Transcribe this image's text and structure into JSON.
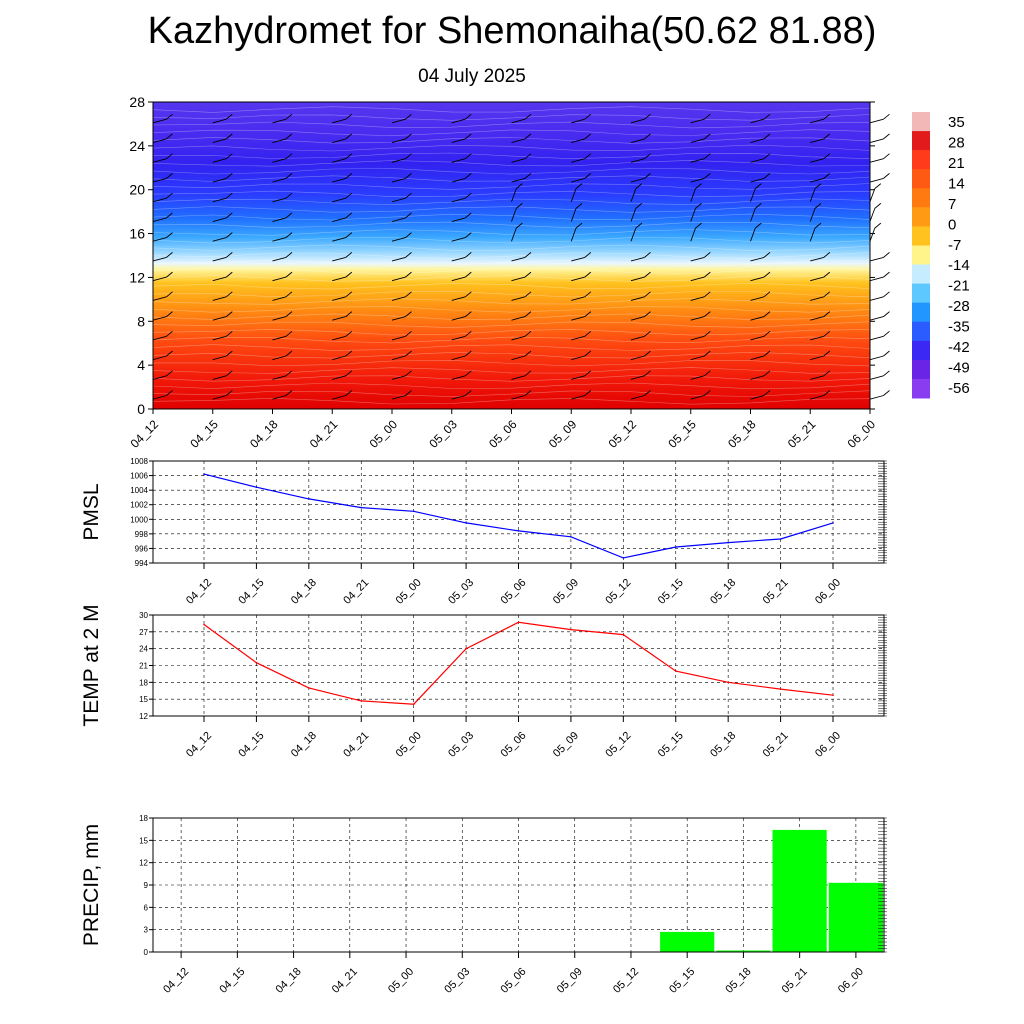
{
  "title": "Kazhydromet for Shemonaiha(50.62 81.88)",
  "subtitle": "04 July 2025",
  "time_labels": [
    "04_12",
    "04_15",
    "04_18",
    "04_21",
    "05_00",
    "05_03",
    "05_06",
    "05_09",
    "05_12",
    "05_15",
    "05_18",
    "05_21",
    "06_00"
  ],
  "chart_data": [
    {
      "type": "heatmap",
      "variable": "temperature",
      "x": [
        "04_12",
        "04_15",
        "04_18",
        "04_21",
        "05_00",
        "05_03",
        "05_06",
        "05_09",
        "05_12",
        "05_15",
        "05_18",
        "05_21",
        "06_00"
      ],
      "ylim": [
        0,
        28
      ],
      "y_ticks": [
        0,
        4,
        8,
        12,
        16,
        20,
        24,
        28
      ],
      "colorbar_labels": [
        "35",
        "28",
        "21",
        "14",
        "7",
        "0",
        "-7",
        "-14",
        "-21",
        "-28",
        "-35",
        "-42",
        "-49",
        "-56"
      ],
      "colorbar_colors": [
        "#f2b8b8",
        "#e31a1c",
        "#ff3b1c",
        "#ff5a14",
        "#ff7a10",
        "#ff9a14",
        "#ffc21e",
        "#fff48a",
        "#c6ecff",
        "#5cc8ff",
        "#2196ff",
        "#2a5cff",
        "#3c28f5",
        "#6a24e6",
        "#8a3cf0"
      ],
      "levels_km_approx": "0-28",
      "layer_colors_bottom_to_top": [
        "red",
        "orange",
        "yellow",
        "light blue",
        "blue",
        "purple"
      ]
    },
    {
      "type": "line",
      "ylabel": "PMSL",
      "x": [
        "04_12",
        "04_15",
        "04_18",
        "04_21",
        "05_00",
        "05_03",
        "05_06",
        "05_09",
        "05_12",
        "05_15",
        "05_18",
        "05_21",
        "06_00"
      ],
      "values": [
        1006.2,
        1004.4,
        1002.8,
        1001.6,
        1001.1,
        999.5,
        998.4,
        997.6,
        994.7,
        996.2,
        996.8,
        997.3,
        999.5
      ],
      "ylim": [
        994,
        1008
      ],
      "y_ticks": [
        994,
        996,
        998,
        1000,
        1002,
        1004,
        1006,
        1008
      ],
      "color": "#0000ff",
      "grid": true
    },
    {
      "type": "line",
      "ylabel": "TEMP at 2 M",
      "x": [
        "04_12",
        "04_15",
        "04_18",
        "04_21",
        "05_00",
        "05_03",
        "05_06",
        "05_09",
        "05_12",
        "05_15",
        "05_18",
        "05_21",
        "06_00"
      ],
      "values": [
        28.3,
        21.5,
        17.0,
        14.7,
        14.1,
        24.0,
        28.7,
        27.4,
        26.5,
        20.0,
        18.0,
        16.8,
        15.7
      ],
      "ylim": [
        12,
        30
      ],
      "y_ticks": [
        12,
        15,
        18,
        21,
        24,
        27,
        30
      ],
      "color": "#ff0000",
      "grid": true
    },
    {
      "type": "bar",
      "ylabel": "PRECIP, mm",
      "categories": [
        "04_12",
        "04_15",
        "04_18",
        "04_21",
        "05_00",
        "05_03",
        "05_06",
        "05_09",
        "05_12",
        "05_15",
        "05_18",
        "05_21",
        "06_00"
      ],
      "values": [
        0,
        0,
        0,
        0,
        0,
        0,
        0,
        0,
        0,
        2.7,
        0.2,
        16.4,
        9.3
      ],
      "ylim": [
        0,
        18
      ],
      "y_ticks": [
        0,
        3,
        6,
        9,
        12,
        15,
        18
      ],
      "color": "#00ff00",
      "grid": true
    }
  ]
}
